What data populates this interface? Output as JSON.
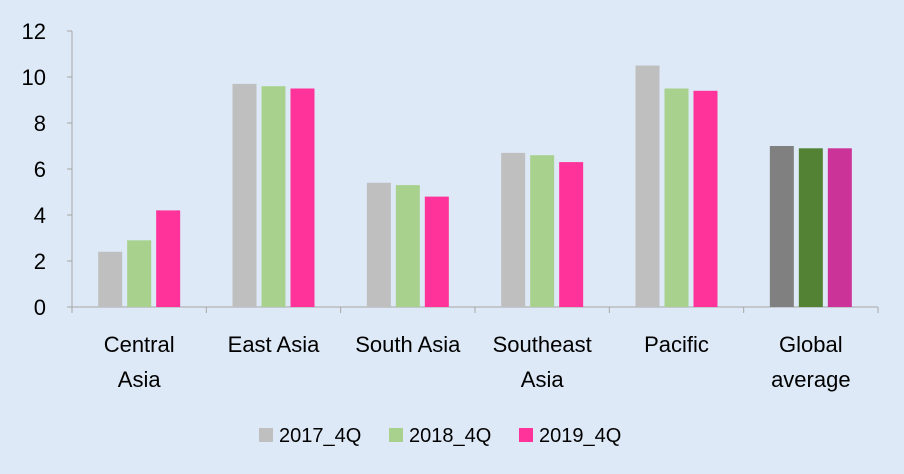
{
  "chart_data": {
    "type": "bar",
    "title": "",
    "xlabel": "",
    "ylabel": "",
    "ylim": [
      0,
      12
    ],
    "yticks": [
      0,
      2,
      4,
      6,
      8,
      10,
      12
    ],
    "grid": false,
    "legend_position": "bottom",
    "categories": [
      [
        "Central",
        "Asia"
      ],
      [
        "East Asia"
      ],
      [
        "South Asia"
      ],
      [
        "Southeast",
        "Asia"
      ],
      [
        "Pacific"
      ],
      [
        "Global",
        "average"
      ]
    ],
    "series": [
      {
        "name": "2017_4Q",
        "color": "#bfbfbf",
        "values": [
          2.4,
          9.7,
          5.4,
          6.7,
          10.5,
          7.0
        ]
      },
      {
        "name": "2018_4Q",
        "color": "#a9d18e",
        "values": [
          2.9,
          9.6,
          5.3,
          6.6,
          9.5,
          6.9
        ]
      },
      {
        "name": "2019_4Q",
        "color": "#ff3399",
        "values": [
          4.2,
          9.5,
          4.8,
          6.3,
          9.4,
          6.9
        ]
      }
    ],
    "highlight_category_index": 5,
    "highlight_colors": [
      "#808080",
      "#548235",
      "#cc3399"
    ]
  }
}
